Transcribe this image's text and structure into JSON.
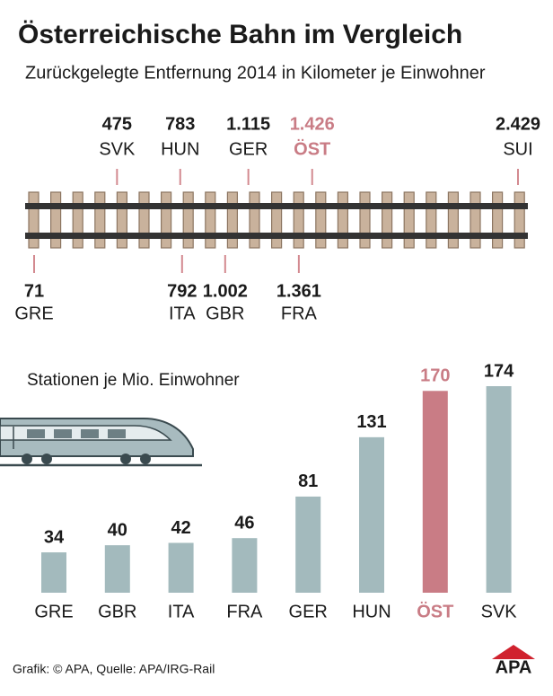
{
  "header": {
    "title": "Österreichische Bahn im Vergleich",
    "subtitle": "Zurückgelegte Entfernung 2014 in Kilometer je Einwohner"
  },
  "chart_data": [
    {
      "type": "track",
      "categories": [
        "GRE",
        "SVK",
        "HUN",
        "ITA",
        "GBR",
        "GER",
        "FRA",
        "ÖST",
        "SUI"
      ],
      "values": [
        71,
        475,
        783,
        792,
        1002,
        1115,
        1361,
        1426,
        2429
      ],
      "value_labels": [
        "71",
        "475",
        "783",
        "792",
        "1.002",
        "1.115",
        "1.361",
        "1.426",
        "2.429"
      ],
      "label_colors": [
        "#1a1a1a",
        "#1a1a1a",
        "#1a1a1a",
        "#1a1a1a",
        "#1a1a1a",
        "#1a1a1a",
        "#1a1a1a",
        "#c97c85",
        "#1a1a1a"
      ],
      "marker_color": "#d38a90"
    },
    {
      "type": "bar",
      "subtitle": "Stationen je Mio. Einwohner",
      "categories": [
        "GRE",
        "GBR",
        "ITA",
        "FRA",
        "GER",
        "HUN",
        "ÖST",
        "SVK"
      ],
      "values": [
        34,
        40,
        42,
        46,
        81,
        131,
        170,
        174
      ],
      "colors": [
        "#a3babd",
        "#a3babd",
        "#a3babd",
        "#a3babd",
        "#a3babd",
        "#a3babd",
        "#c97c85",
        "#a3babd"
      ],
      "label_colors": [
        "#1a1a1a",
        "#1a1a1a",
        "#1a1a1a",
        "#1a1a1a",
        "#1a1a1a",
        "#1a1a1a",
        "#c97c85",
        "#1a1a1a"
      ]
    }
  ],
  "footer": {
    "credit": "Grafik: © APA, Quelle: APA/IRG-Rail",
    "logo": "APA"
  }
}
